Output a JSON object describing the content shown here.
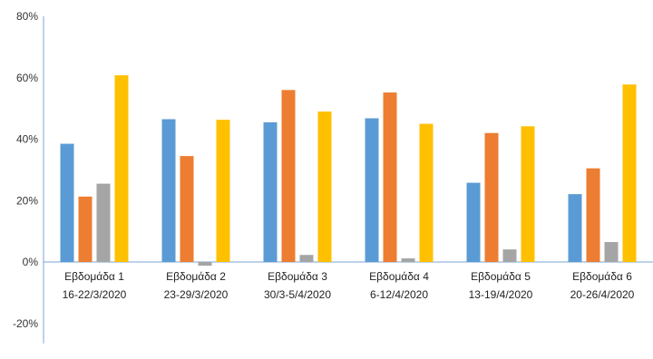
{
  "chart_data": {
    "type": "bar",
    "title": "",
    "categories": [
      [
        "Εβδομάδα 1",
        "16-22/3/2020"
      ],
      [
        "Εβδομάδα 2",
        "23-29/3/2020"
      ],
      [
        "Εβδομάδα 3",
        "30/3-5/4/2020"
      ],
      [
        "Εβδομάδα 4",
        "6-12/4/2020"
      ],
      [
        "Εβδομάδα 5",
        "13-19/4/2020"
      ],
      [
        "Εβδομάδα 6",
        "20-26/4/2020"
      ]
    ],
    "series": [
      {
        "color": "#5B9BD5",
        "values": [
          38.5,
          46.5,
          45.5,
          46.8,
          25.8,
          22.1
        ]
      },
      {
        "color": "#ED7D31",
        "values": [
          21.3,
          34.5,
          56.0,
          55.2,
          42.0,
          30.5
        ]
      },
      {
        "color": "#A5A5A5",
        "values": [
          25.5,
          -1.2,
          2.3,
          1.2,
          4.1,
          6.5
        ]
      },
      {
        "color": "#FFC000",
        "values": [
          60.8,
          46.3,
          49.0,
          45.0,
          44.2,
          57.8
        ]
      }
    ],
    "yticks": [
      "80%",
      "60%",
      "40%",
      "20%",
      "0%",
      "-20%"
    ],
    "ytick_values": [
      80,
      60,
      40,
      20,
      0,
      -20
    ],
    "ylim": [
      -25,
      80
    ],
    "xlabel": "",
    "ylabel": "",
    "grid": false,
    "legend": "none"
  }
}
